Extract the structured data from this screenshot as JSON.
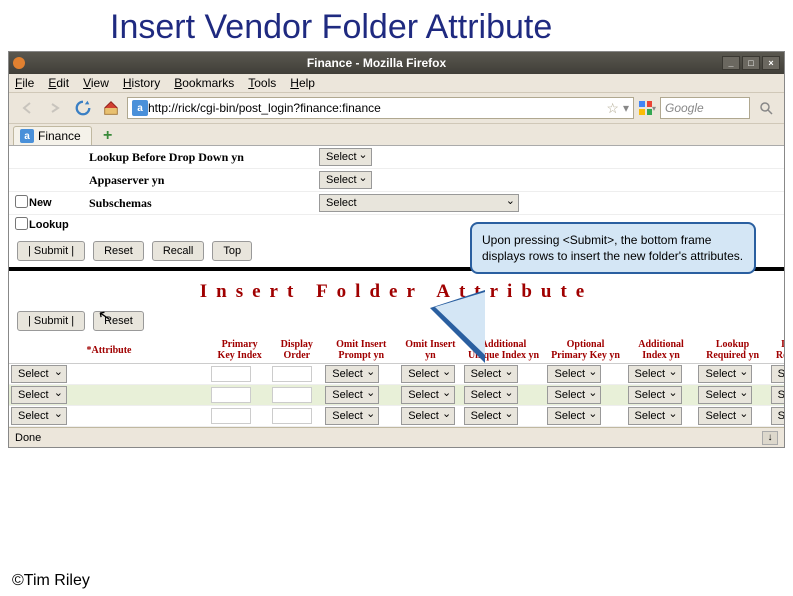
{
  "slide_title": "Insert Vendor Folder Attribute",
  "copyright": "©Tim Riley",
  "window": {
    "title": "Finance - Mozilla Firefox",
    "minimize": "_",
    "maximize": "□",
    "close": "×"
  },
  "menubar": [
    "File",
    "Edit",
    "View",
    "History",
    "Bookmarks",
    "Tools",
    "Help"
  ],
  "address": {
    "url": "http://rick/cgi-bin/post_login?finance:finance",
    "search_placeholder": "Google"
  },
  "tab": {
    "label": "Finance"
  },
  "top_form": {
    "rows": [
      {
        "checkbox": false,
        "cb_label": "",
        "name": "Lookup Before Drop Down yn",
        "select": "Select"
      },
      {
        "checkbox": false,
        "cb_label": "",
        "name": "Appaserver yn",
        "select": "Select"
      },
      {
        "checkbox": true,
        "cb_label": "New",
        "name": "Subschemas",
        "select": "Select"
      },
      {
        "checkbox": true,
        "cb_label": "Lookup",
        "name": "",
        "select": ""
      }
    ],
    "buttons": {
      "submit": "|   Submit   |",
      "reset": "Reset",
      "recall": "Recall",
      "top": "Top"
    }
  },
  "section_title": "Insert  Folder  Attribute",
  "callout_text": "Upon pressing <Submit>, the bottom frame displays rows to insert the new folder's attributes.",
  "bottom": {
    "buttons": {
      "submit": "|   Submit   |",
      "reset": "Reset"
    },
    "columns": [
      "*Attribute",
      "Primary Key Index",
      "Display Order",
      "Omit Insert Prompt yn",
      "Omit Insert yn",
      "Additional Unique Index yn",
      "Optional Primary Key yn",
      "Additional Index yn",
      "Lookup Required yn",
      "Insert Requ yn"
    ],
    "cell_select": "Select",
    "cell_sele": "Sele",
    "row_count": 3
  },
  "status": {
    "text": "Done",
    "dl": "↓"
  }
}
